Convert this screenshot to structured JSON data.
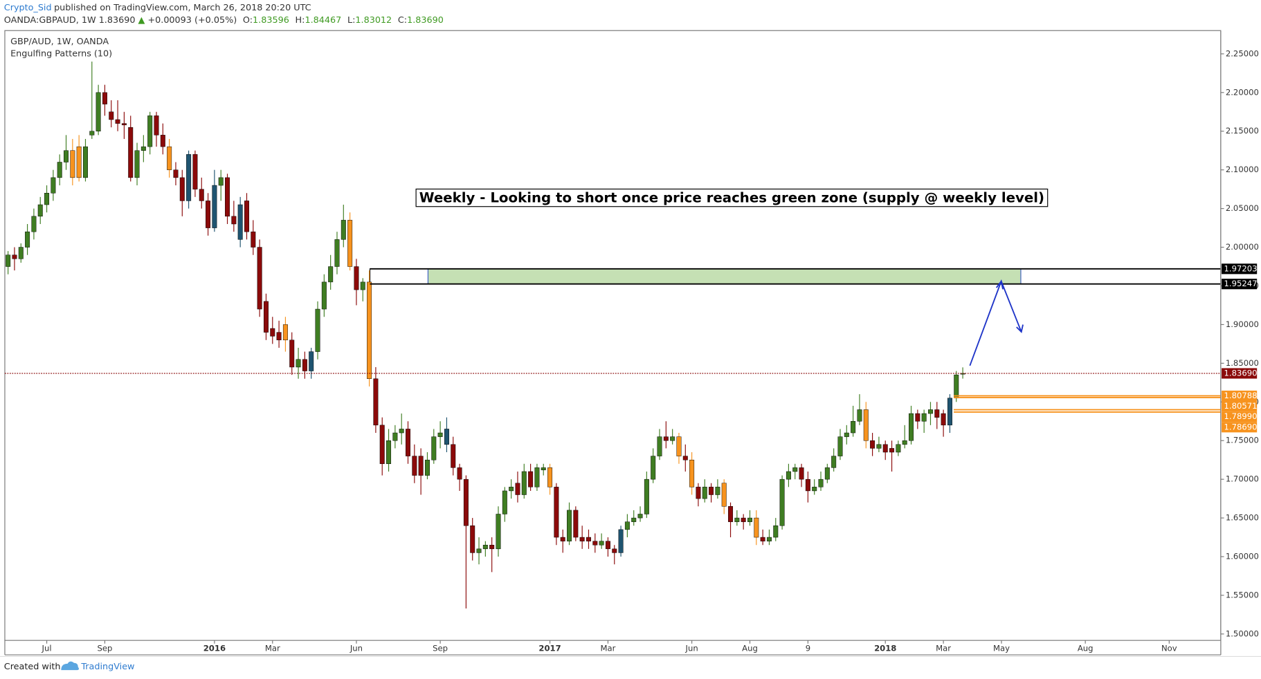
{
  "header": {
    "author": "Crypto_Sid",
    "published": "published on TradingView.com, March 26, 2018 20:20 UTC",
    "symbol": "OANDA:GBPAUD, 1W",
    "last": "1.83690",
    "arrow": "▲",
    "change": "+0.00093 (+0.05%)",
    "ohlc": [
      {
        "k": "O:",
        "v": "1.83596"
      },
      {
        "k": "H:",
        "v": "1.84467"
      },
      {
        "k": "L:",
        "v": "1.83012"
      },
      {
        "k": "C:",
        "v": "1.83690"
      }
    ]
  },
  "footer": {
    "created": "Created with",
    "brand": "TradingView"
  },
  "chart_data": {
    "type": "candlestick",
    "title": "GBP/AUD, 1W, OANDA",
    "subtitle": "Engulfing Patterns (10)",
    "annotation": "Weekly - Looking to short once price reaches green zone (supply @ weekly level)",
    "colors": {
      "up": "#3f7d22",
      "down": "#8b0a0a",
      "bearish_engulfing": "#f7931e",
      "bullish_engulfing": "#1f5470"
    },
    "bearish_engulfing": [
      10,
      11,
      25,
      43,
      53,
      56,
      84,
      104,
      106,
      111,
      116,
      133
    ],
    "bullish_engulfing": [
      28,
      32,
      36,
      47,
      68,
      95,
      146
    ],
    "ohlc": [
      [
        1.975,
        1.995,
        1.965,
        1.99
      ],
      [
        1.99,
        2.0,
        1.97,
        1.985
      ],
      [
        1.985,
        2.005,
        1.98,
        2.0
      ],
      [
        2.0,
        2.03,
        1.99,
        2.02
      ],
      [
        2.02,
        2.05,
        2.01,
        2.04
      ],
      [
        2.04,
        2.065,
        2.03,
        2.055
      ],
      [
        2.055,
        2.08,
        2.045,
        2.07
      ],
      [
        2.07,
        2.1,
        2.06,
        2.09
      ],
      [
        2.09,
        2.12,
        2.08,
        2.11
      ],
      [
        2.11,
        2.145,
        2.1,
        2.125
      ],
      [
        2.125,
        2.14,
        2.08,
        2.09
      ],
      [
        2.13,
        2.145,
        2.085,
        2.09
      ],
      [
        2.09,
        2.14,
        2.085,
        2.13
      ],
      [
        2.145,
        2.24,
        2.14,
        2.15
      ],
      [
        2.15,
        2.21,
        2.145,
        2.2
      ],
      [
        2.2,
        2.21,
        2.17,
        2.185
      ],
      [
        2.175,
        2.19,
        2.155,
        2.165
      ],
      [
        2.165,
        2.19,
        2.15,
        2.16
      ],
      [
        2.16,
        2.175,
        2.14,
        2.158
      ],
      [
        2.155,
        2.17,
        2.085,
        2.09
      ],
      [
        2.09,
        2.135,
        2.08,
        2.125
      ],
      [
        2.125,
        2.145,
        2.11,
        2.13
      ],
      [
        2.13,
        2.175,
        2.12,
        2.17
      ],
      [
        2.17,
        2.175,
        2.13,
        2.145
      ],
      [
        2.145,
        2.16,
        2.12,
        2.13
      ],
      [
        2.13,
        2.14,
        2.09,
        2.1
      ],
      [
        2.1,
        2.11,
        2.08,
        2.09
      ],
      [
        2.09,
        2.1,
        2.04,
        2.06
      ],
      [
        2.06,
        2.125,
        2.05,
        2.12
      ],
      [
        2.12,
        2.125,
        2.065,
        2.075
      ],
      [
        2.075,
        2.09,
        2.05,
        2.06
      ],
      [
        2.06,
        2.07,
        2.015,
        2.025
      ],
      [
        2.025,
        2.1,
        2.02,
        2.08
      ],
      [
        2.08,
        2.1,
        2.06,
        2.09
      ],
      [
        2.09,
        2.095,
        2.03,
        2.04
      ],
      [
        2.04,
        2.06,
        2.02,
        2.03
      ],
      [
        2.01,
        2.065,
        2.0,
        2.055
      ],
      [
        2.06,
        2.07,
        2.01,
        2.02
      ],
      [
        2.02,
        2.035,
        1.99,
        2.0
      ],
      [
        2.0,
        2.01,
        1.91,
        1.92
      ],
      [
        1.93,
        1.94,
        1.88,
        1.89
      ],
      [
        1.895,
        1.91,
        1.875,
        1.885
      ],
      [
        1.89,
        1.905,
        1.87,
        1.88
      ],
      [
        1.9,
        1.91,
        1.865,
        1.88
      ],
      [
        1.88,
        1.89,
        1.835,
        1.845
      ],
      [
        1.845,
        1.87,
        1.83,
        1.855
      ],
      [
        1.855,
        1.865,
        1.83,
        1.84
      ],
      [
        1.84,
        1.87,
        1.83,
        1.865
      ],
      [
        1.865,
        1.93,
        1.855,
        1.92
      ],
      [
        1.92,
        1.965,
        1.91,
        1.955
      ],
      [
        1.955,
        1.99,
        1.945,
        1.975
      ],
      [
        1.975,
        2.02,
        1.965,
        2.01
      ],
      [
        2.01,
        2.055,
        2.0,
        2.035
      ],
      [
        2.035,
        2.045,
        1.97,
        1.975
      ],
      [
        1.975,
        1.985,
        1.925,
        1.945
      ],
      [
        1.945,
        1.96,
        1.93,
        1.955
      ],
      [
        1.955,
        1.97,
        1.82,
        1.83
      ],
      [
        1.83,
        1.845,
        1.76,
        1.77
      ],
      [
        1.77,
        1.78,
        1.705,
        1.72
      ],
      [
        1.72,
        1.765,
        1.71,
        1.75
      ],
      [
        1.75,
        1.77,
        1.74,
        1.76
      ],
      [
        1.76,
        1.785,
        1.745,
        1.765
      ],
      [
        1.765,
        1.775,
        1.72,
        1.73
      ],
      [
        1.73,
        1.745,
        1.695,
        1.705
      ],
      [
        1.73,
        1.74,
        1.68,
        1.705
      ],
      [
        1.705,
        1.735,
        1.7,
        1.725
      ],
      [
        1.725,
        1.765,
        1.72,
        1.755
      ],
      [
        1.755,
        1.775,
        1.74,
        1.76
      ],
      [
        1.745,
        1.78,
        1.735,
        1.765
      ],
      [
        1.745,
        1.755,
        1.705,
        1.715
      ],
      [
        1.715,
        1.72,
        1.685,
        1.7
      ],
      [
        1.7,
        1.705,
        1.533,
        1.64
      ],
      [
        1.64,
        1.65,
        1.595,
        1.605
      ],
      [
        1.605,
        1.625,
        1.59,
        1.61
      ],
      [
        1.61,
        1.62,
        1.6,
        1.615
      ],
      [
        1.615,
        1.625,
        1.58,
        1.61
      ],
      [
        1.61,
        1.665,
        1.6,
        1.655
      ],
      [
        1.655,
        1.69,
        1.645,
        1.685
      ],
      [
        1.685,
        1.7,
        1.675,
        1.69
      ],
      [
        1.695,
        1.71,
        1.67,
        1.68
      ],
      [
        1.68,
        1.72,
        1.675,
        1.71
      ],
      [
        1.71,
        1.72,
        1.685,
        1.69
      ],
      [
        1.69,
        1.72,
        1.685,
        1.715
      ],
      [
        1.712,
        1.72,
        1.705,
        1.715
      ],
      [
        1.715,
        1.72,
        1.68,
        1.69
      ],
      [
        1.69,
        1.695,
        1.615,
        1.625
      ],
      [
        1.625,
        1.635,
        1.605,
        1.62
      ],
      [
        1.62,
        1.67,
        1.615,
        1.66
      ],
      [
        1.66,
        1.665,
        1.62,
        1.625
      ],
      [
        1.625,
        1.64,
        1.61,
        1.62
      ],
      [
        1.625,
        1.635,
        1.61,
        1.62
      ],
      [
        1.62,
        1.63,
        1.605,
        1.615
      ],
      [
        1.615,
        1.63,
        1.61,
        1.62
      ],
      [
        1.62,
        1.625,
        1.6,
        1.61
      ],
      [
        1.61,
        1.615,
        1.59,
        1.605
      ],
      [
        1.605,
        1.64,
        1.6,
        1.635
      ],
      [
        1.635,
        1.655,
        1.625,
        1.645
      ],
      [
        1.645,
        1.66,
        1.64,
        1.65
      ],
      [
        1.65,
        1.665,
        1.645,
        1.655
      ],
      [
        1.655,
        1.71,
        1.65,
        1.7
      ],
      [
        1.7,
        1.74,
        1.695,
        1.73
      ],
      [
        1.73,
        1.765,
        1.725,
        1.755
      ],
      [
        1.755,
        1.775,
        1.74,
        1.75
      ],
      [
        1.75,
        1.765,
        1.745,
        1.755
      ],
      [
        1.755,
        1.76,
        1.72,
        1.73
      ],
      [
        1.73,
        1.745,
        1.71,
        1.725
      ],
      [
        1.725,
        1.735,
        1.68,
        1.69
      ],
      [
        1.69,
        1.695,
        1.665,
        1.675
      ],
      [
        1.675,
        1.7,
        1.67,
        1.69
      ],
      [
        1.69,
        1.695,
        1.67,
        1.68
      ],
      [
        1.68,
        1.7,
        1.675,
        1.69
      ],
      [
        1.695,
        1.7,
        1.655,
        1.665
      ],
      [
        1.665,
        1.67,
        1.625,
        1.645
      ],
      [
        1.645,
        1.66,
        1.64,
        1.65
      ],
      [
        1.65,
        1.655,
        1.635,
        1.645
      ],
      [
        1.645,
        1.66,
        1.64,
        1.65
      ],
      [
        1.65,
        1.66,
        1.615,
        1.625
      ],
      [
        1.625,
        1.635,
        1.615,
        1.62
      ],
      [
        1.62,
        1.635,
        1.615,
        1.625
      ],
      [
        1.625,
        1.65,
        1.62,
        1.64
      ],
      [
        1.64,
        1.705,
        1.635,
        1.7
      ],
      [
        1.7,
        1.72,
        1.69,
        1.71
      ],
      [
        1.71,
        1.72,
        1.7,
        1.715
      ],
      [
        1.715,
        1.72,
        1.69,
        1.7
      ],
      [
        1.7,
        1.71,
        1.67,
        1.685
      ],
      [
        1.685,
        1.7,
        1.68,
        1.69
      ],
      [
        1.69,
        1.71,
        1.685,
        1.7
      ],
      [
        1.7,
        1.72,
        1.695,
        1.715
      ],
      [
        1.715,
        1.74,
        1.71,
        1.73
      ],
      [
        1.73,
        1.765,
        1.725,
        1.755
      ],
      [
        1.755,
        1.77,
        1.745,
        1.76
      ],
      [
        1.76,
        1.795,
        1.755,
        1.775
      ],
      [
        1.775,
        1.81,
        1.77,
        1.79
      ],
      [
        1.79,
        1.8,
        1.74,
        1.75
      ],
      [
        1.75,
        1.76,
        1.73,
        1.74
      ],
      [
        1.74,
        1.755,
        1.735,
        1.745
      ],
      [
        1.745,
        1.75,
        1.725,
        1.735
      ],
      [
        1.74,
        1.75,
        1.71,
        1.735
      ],
      [
        1.735,
        1.75,
        1.73,
        1.745
      ],
      [
        1.745,
        1.77,
        1.74,
        1.75
      ],
      [
        1.75,
        1.795,
        1.745,
        1.785
      ],
      [
        1.785,
        1.79,
        1.765,
        1.775
      ],
      [
        1.775,
        1.79,
        1.76,
        1.785
      ],
      [
        1.785,
        1.8,
        1.77,
        1.79
      ],
      [
        1.79,
        1.8,
        1.765,
        1.78
      ],
      [
        1.785,
        1.79,
        1.755,
        1.77
      ],
      [
        1.77,
        1.81,
        1.76,
        1.805
      ],
      [
        1.805,
        1.84,
        1.8,
        1.835
      ],
      [
        1.83596,
        1.84467,
        1.83012,
        1.8369
      ]
    ],
    "xlim": [
      -0.5,
      188
    ],
    "xticks": [
      {
        "value": 6,
        "label": "Jul"
      },
      {
        "value": 15,
        "label": "Sep"
      },
      {
        "value": 32,
        "label": "2016"
      },
      {
        "value": 41,
        "label": "Mar"
      },
      {
        "value": 54,
        "label": "Jun"
      },
      {
        "value": 67,
        "label": "Sep"
      },
      {
        "value": 84,
        "label": "2017"
      },
      {
        "value": 93,
        "label": "Mar"
      },
      {
        "value": 106,
        "label": "Jun"
      },
      {
        "value": 115,
        "label": "Aug"
      },
      {
        "value": 124,
        "label": "9"
      },
      {
        "value": 136,
        "label": "2018"
      },
      {
        "value": 145,
        "label": "Mar"
      },
      {
        "value": 154,
        "label": "May"
      },
      {
        "value": 167,
        "label": "Aug"
      },
      {
        "value": 180,
        "label": "Nov"
      }
    ],
    "ylim": [
      1.4917,
      2.2801
    ],
    "yticks": [
      {
        "value": 1.5,
        "label": "1.50000"
      },
      {
        "value": 1.55,
        "label": "1.55000"
      },
      {
        "value": 1.6,
        "label": "1.60000"
      },
      {
        "value": 1.65,
        "label": "1.65000"
      },
      {
        "value": 1.7,
        "label": "1.70000"
      },
      {
        "value": 1.75,
        "label": "1.75000"
      },
      {
        "value": 1.8,
        "label": "1.80000"
      },
      {
        "value": 1.85,
        "label": "1.85000"
      },
      {
        "value": 1.9,
        "label": "1.90000"
      },
      {
        "value": 1.95,
        "label": "1.95000"
      },
      {
        "value": 2.0,
        "label": "2.00000"
      },
      {
        "value": 2.05,
        "label": "2.05000"
      },
      {
        "value": 2.1,
        "label": "2.10000"
      },
      {
        "value": 2.15,
        "label": "2.15000"
      },
      {
        "value": 2.2,
        "label": "2.20000"
      },
      {
        "value": 2.25,
        "label": "2.25000"
      }
    ],
    "zone": {
      "from": 1.95247,
      "to": 1.97203,
      "start": 56.1,
      "green_start": 65.1,
      "green_end": 157,
      "color": "#c5e0b4"
    },
    "levels": [
      {
        "value": 1.97203,
        "color": "#000000",
        "from": 56.1
      },
      {
        "value": 1.95247,
        "color": "#000000",
        "from": 56.1
      },
      {
        "value": 1.8369,
        "label": "1.83690",
        "color": "#8b0a0a",
        "from": -0.5,
        "dotted": true
      },
      {
        "value": 1.80788,
        "color": "#f7931e",
        "from": 146.6
      },
      {
        "value": 1.80571,
        "color": "#f7931e",
        "from": 146.6
      },
      {
        "value": 1.7899,
        "label": "1.78990",
        "color": "#f7931e",
        "from": 146.6
      },
      {
        "value": 1.7869,
        "label": "1.78690",
        "color": "#f7931e",
        "from": 146.6
      }
    ]
  }
}
